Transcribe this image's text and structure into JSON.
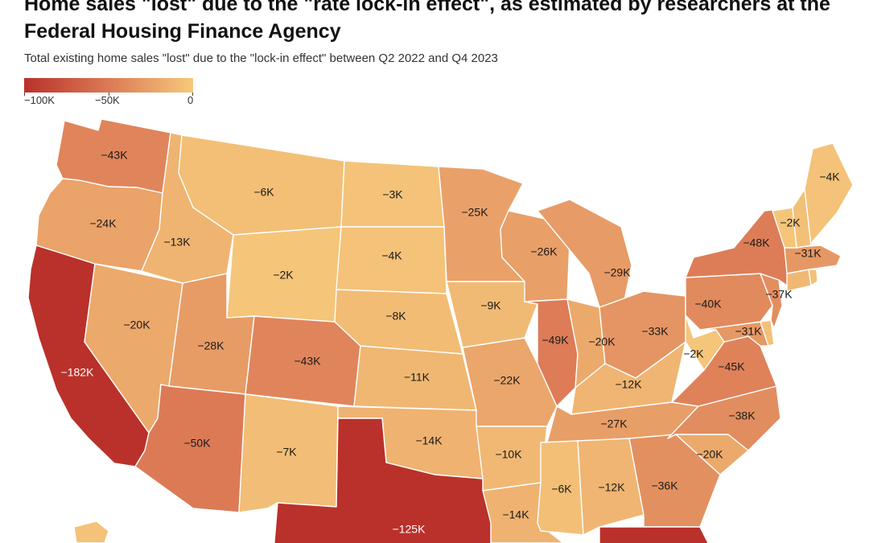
{
  "header": {
    "title": "Home sales \"lost\" due to the \"rate lock-in effect\", as estimated by researchers at the Federal Housing Finance Agency",
    "subtitle": "Total existing home sales \"lost\" due to the \"lock-in effect\" between Q2 2022 and Q4 2023"
  },
  "legend": {
    "labels": [
      "−100K",
      "−50K",
      "0"
    ],
    "colors": [
      "#b9312a",
      "#dc7a56",
      "#f6c87b"
    ]
  },
  "chart_data": {
    "type": "choropleth",
    "title": "Home sales \"lost\" due to the \"rate lock-in effect\", as estimated by researchers at the Federal Housing Finance Agency",
    "subtitle": "Total existing home sales \"lost\" due to the \"lock-in effect\" between Q2 2022 and Q4 2023",
    "value_range": [
      -100000,
      0
    ],
    "states": [
      {
        "code": "WA",
        "value": -43000,
        "label": "−43K"
      },
      {
        "code": "OR",
        "value": -24000,
        "label": "−24K"
      },
      {
        "code": "CA",
        "value": -182000,
        "label": "−182K"
      },
      {
        "code": "NV",
        "value": -20000,
        "label": "−20K"
      },
      {
        "code": "ID",
        "value": -13000,
        "label": "−13K"
      },
      {
        "code": "MT",
        "value": -6000,
        "label": "−6K"
      },
      {
        "code": "WY",
        "value": -2000,
        "label": "−2K"
      },
      {
        "code": "UT",
        "value": -28000,
        "label": "−28K"
      },
      {
        "code": "AZ",
        "value": -50000,
        "label": "−50K"
      },
      {
        "code": "CO",
        "value": -43000,
        "label": "−43K"
      },
      {
        "code": "NM",
        "value": -7000,
        "label": "−7K"
      },
      {
        "code": "ND",
        "value": -3000,
        "label": "−3K"
      },
      {
        "code": "SD",
        "value": -4000,
        "label": "−4K"
      },
      {
        "code": "NE",
        "value": -8000,
        "label": "−8K"
      },
      {
        "code": "KS",
        "value": -11000,
        "label": "−11K"
      },
      {
        "code": "OK",
        "value": -14000,
        "label": "−14K"
      },
      {
        "code": "TX",
        "value": -125000,
        "label": "−125K"
      },
      {
        "code": "MN",
        "value": -25000,
        "label": "−25K"
      },
      {
        "code": "IA",
        "value": -9000,
        "label": "−9K"
      },
      {
        "code": "MO",
        "value": -22000,
        "label": "−22K"
      },
      {
        "code": "AR",
        "value": -10000,
        "label": "−10K"
      },
      {
        "code": "LA",
        "value": -14000,
        "label": "−14K"
      },
      {
        "code": "WI",
        "value": -26000,
        "label": "−26K"
      },
      {
        "code": "IL",
        "value": -49000,
        "label": "−49K"
      },
      {
        "code": "MI",
        "value": -29000,
        "label": "−29K"
      },
      {
        "code": "IN",
        "value": -20000,
        "label": "−20K"
      },
      {
        "code": "OH",
        "value": -33000,
        "label": "−33K"
      },
      {
        "code": "KY",
        "value": -12000,
        "label": "−12K"
      },
      {
        "code": "TN",
        "value": -27000,
        "label": "−27K"
      },
      {
        "code": "MS",
        "value": -6000,
        "label": "−6K"
      },
      {
        "code": "AL",
        "value": -12000,
        "label": "−12K"
      },
      {
        "code": "GA",
        "value": -36000,
        "label": "−36K"
      },
      {
        "code": "FL",
        "value": -110000,
        "label": ""
      },
      {
        "code": "SC",
        "value": -20000,
        "label": "−20K"
      },
      {
        "code": "NC",
        "value": -38000,
        "label": "−38K"
      },
      {
        "code": "VA",
        "value": -45000,
        "label": "−45K"
      },
      {
        "code": "WV",
        "value": -2000,
        "label": "−2K"
      },
      {
        "code": "MD",
        "value": -31000,
        "label": "−31K"
      },
      {
        "code": "DE",
        "value": -5000,
        "label": ""
      },
      {
        "code": "PA",
        "value": -40000,
        "label": "−40K"
      },
      {
        "code": "NJ",
        "value": -37000,
        "label": "−37K"
      },
      {
        "code": "NY",
        "value": -48000,
        "label": "−48K"
      },
      {
        "code": "CT",
        "value": -10000,
        "label": ""
      },
      {
        "code": "RI",
        "value": -5000,
        "label": ""
      },
      {
        "code": "MA",
        "value": -31000,
        "label": "−31K"
      },
      {
        "code": "VT",
        "value": -2000,
        "label": "−2K"
      },
      {
        "code": "NH",
        "value": -5000,
        "label": ""
      },
      {
        "code": "ME",
        "value": -4000,
        "label": "−4K"
      },
      {
        "code": "HI",
        "value": -4000,
        "label": ""
      }
    ]
  }
}
